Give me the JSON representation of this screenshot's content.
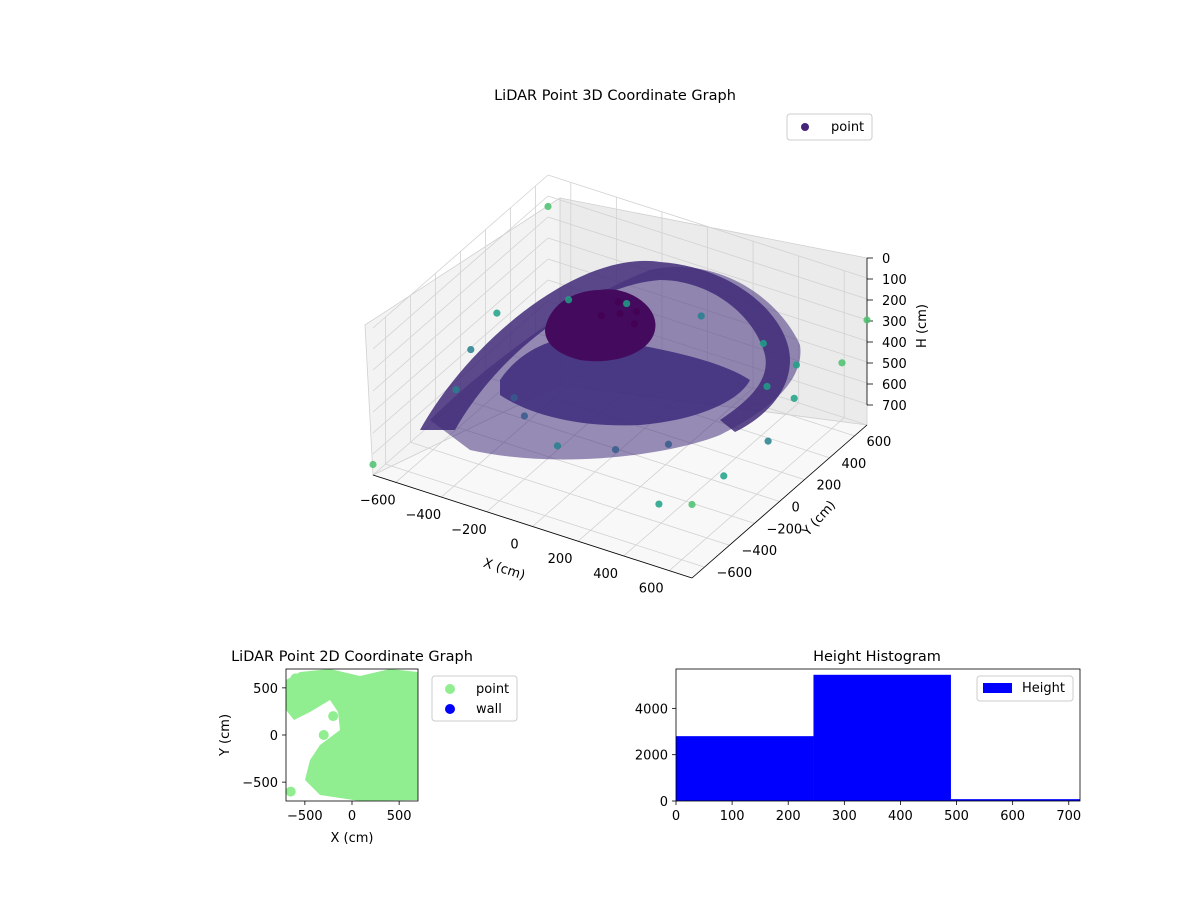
{
  "chart_data": [
    {
      "type": "scatter",
      "projection": "3d",
      "title": "LiDAR Point 3D Coordinate Graph",
      "xlabel": "X (cm)",
      "ylabel": "Y (cm)",
      "zlabel": "H (cm)",
      "xlim": [
        -700,
        700
      ],
      "ylim": [
        -700,
        700
      ],
      "zlim": [
        0,
        700
      ],
      "z_inverted": true,
      "xticks": [
        -600,
        -400,
        -200,
        0,
        200,
        400,
        600
      ],
      "yticks": [
        -600,
        -400,
        -200,
        0,
        200,
        400,
        600
      ],
      "zticks": [
        0,
        100,
        200,
        300,
        400,
        500,
        600,
        700
      ],
      "grid": true,
      "colormap": "viridis",
      "legend": {
        "placement": "upper-right",
        "entries": [
          "point"
        ]
      },
      "series": [
        {
          "name": "point",
          "color": "#46247a",
          "points": [
            [
              0,
              0,
              50
            ],
            [
              50,
              40,
              45
            ],
            [
              -40,
              60,
              40
            ],
            [
              80,
              -30,
              55
            ],
            [
              -60,
              -40,
              60
            ],
            [
              -300,
              -300,
              400
            ],
            [
              -200,
              -400,
              400
            ],
            [
              0,
              -500,
              420
            ],
            [
              200,
              -400,
              420
            ],
            [
              350,
              -250,
              420
            ],
            [
              -500,
              500,
              420
            ],
            [
              -300,
              600,
              420
            ],
            [
              0,
              650,
              400
            ],
            [
              300,
              600,
              400
            ],
            [
              500,
              500,
              380
            ],
            [
              600,
              300,
              400
            ],
            [
              650,
              0,
              430
            ],
            [
              620,
              -300,
              450
            ],
            [
              500,
              -600,
              470
            ],
            [
              -650,
              200,
              380
            ],
            [
              -600,
              -100,
              380
            ],
            [
              -500,
              -400,
              380
            ],
            [
              700,
              -700,
              350
            ],
            [
              700,
              700,
              200
            ],
            [
              -700,
              700,
              150
            ],
            [
              -700,
              -700,
              650
            ],
            [
              700,
              -100,
              100
            ],
            [
              700,
              500,
              300
            ]
          ]
        }
      ]
    },
    {
      "type": "scatter",
      "title": "LiDAR Point 2D Coordinate Graph",
      "xlabel": "X (cm)",
      "ylabel": "Y (cm)",
      "xlim": [
        -700,
        700
      ],
      "ylim": [
        -700,
        700
      ],
      "xticks": [
        -500,
        0,
        500
      ],
      "yticks": [
        -500,
        0,
        500
      ],
      "legend": {
        "placement": "outside-right",
        "entries": [
          "point",
          "wall"
        ]
      },
      "series": [
        {
          "name": "point",
          "color": "#90ee90",
          "points": [
            [
              0,
              0
            ],
            [
              100,
              100
            ],
            [
              -100,
              -100
            ],
            [
              200,
              -200
            ],
            [
              -200,
              200
            ],
            [
              300,
              0
            ],
            [
              -300,
              0
            ],
            [
              0,
              300
            ],
            [
              0,
              -300
            ],
            [
              400,
              400
            ],
            [
              -400,
              400
            ],
            [
              400,
              -400
            ],
            [
              -400,
              -400
            ],
            [
              600,
              600
            ],
            [
              -600,
              600
            ],
            [
              600,
              -600
            ],
            [
              -650,
              -600
            ],
            [
              500,
              0
            ],
            [
              -500,
              550
            ]
          ]
        },
        {
          "name": "wall",
          "color": "#0000ff",
          "points": []
        }
      ]
    },
    {
      "type": "bar",
      "subtype": "histogram",
      "title": "Height Histogram",
      "xlim": [
        0,
        720
      ],
      "ylim": [
        0,
        5700
      ],
      "xticks": [
        0,
        100,
        200,
        300,
        400,
        500,
        600,
        700
      ],
      "yticks": [
        0,
        2000,
        4000
      ],
      "legend": {
        "placement": "upper-right",
        "entries": [
          "Height"
        ]
      },
      "series": [
        {
          "name": "Height",
          "color": "#0000ff",
          "bins": [
            0,
            245,
            490,
            735
          ],
          "values": [
            2800,
            5450,
            80
          ]
        }
      ]
    }
  ]
}
